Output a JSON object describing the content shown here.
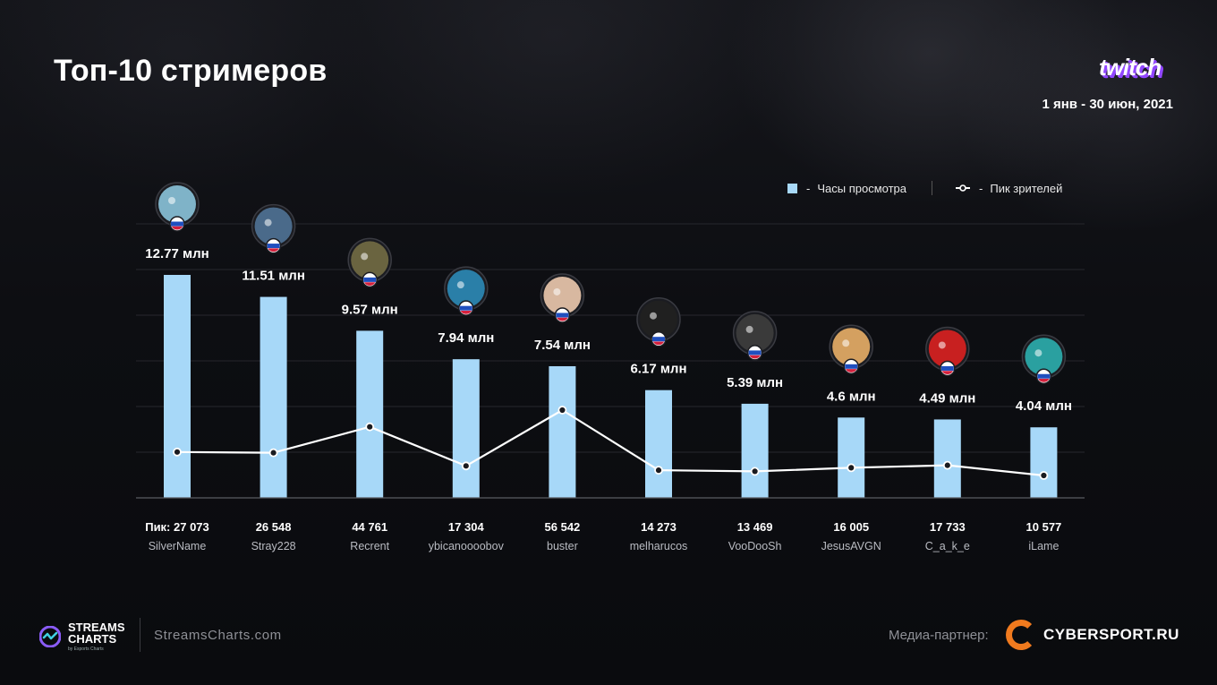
{
  "title": "Топ-10 стримеров",
  "period": "1 янв - 30 июн, 2021",
  "brand": {
    "platform_logo_text": "twitch",
    "platform_color": "#9146ff"
  },
  "legend": {
    "bars_label": "Часы просмотра",
    "line_label": "Пик зрителей",
    "dash": "-"
  },
  "colors": {
    "bar": "#a7d8f8",
    "line": "#ffffff",
    "flag_blue": "#1f4fbf",
    "flag_red": "#d4213d"
  },
  "chart_data": {
    "type": "bar",
    "categories": [
      "SilverName",
      "Stray228",
      "Recrent",
      "ybicanoooobov",
      "buster",
      "melharucos",
      "VooDooSh",
      "JesusAVGN",
      "C_a_k_e",
      "iLame"
    ],
    "series": [
      {
        "name": "Часы просмотра",
        "type": "bar",
        "values": [
          12.77,
          11.51,
          9.57,
          7.94,
          7.54,
          6.17,
          5.39,
          4.6,
          4.49,
          4.04
        ],
        "labels": [
          "12.77 млн",
          "11.51 млн",
          "9.57 млн",
          "7.94 млн",
          "7.54 млн",
          "6.17 млн",
          "5.39 млн",
          "4.6 млн",
          "4.49 млн",
          "4.04 млн"
        ]
      },
      {
        "name": "Пик зрителей",
        "type": "line",
        "values": [
          27073,
          26548,
          44761,
          17304,
          56542,
          14273,
          13469,
          16005,
          17733,
          10577
        ],
        "labels": [
          "Пик: 27 073",
          "26 548",
          "44 761",
          "17 304",
          "56 542",
          "14 273",
          "13 469",
          "16 005",
          "17 733",
          "10 577"
        ]
      }
    ],
    "avatar_icons": [
      "blue-blob-avatar",
      "fire-avatar",
      "recrent-avatar",
      "che-avatar",
      "bald-glasses-avatar",
      "white-hand-avatar",
      "man-avatar",
      "jesus-avatar",
      "wolf-avatar",
      "green-face-avatar"
    ],
    "avatar_colors": [
      "#7fb3c8",
      "#4a6a8a",
      "#6a6440",
      "#2a7fa8",
      "#d8b8a0",
      "#202020",
      "#3a3a3a",
      "#d4a060",
      "#c82020",
      "#2aa0a0"
    ],
    "flags": [
      "ru",
      "ru",
      "ru",
      "ru",
      "ru",
      "ru",
      "ru",
      "ru",
      "ru",
      "ru"
    ],
    "grid": true,
    "legend_position": "top-right"
  },
  "footer": {
    "logo_name": "STREAMS CHARTS",
    "logo_name_line1": "STREAMS",
    "logo_name_line2": "CHARTS",
    "logo_by": "by Esports Charts",
    "site": "StreamsCharts.com",
    "media_partner_label": "Медиа-партнер:",
    "partner_name": "CYBERSPORT.RU"
  }
}
